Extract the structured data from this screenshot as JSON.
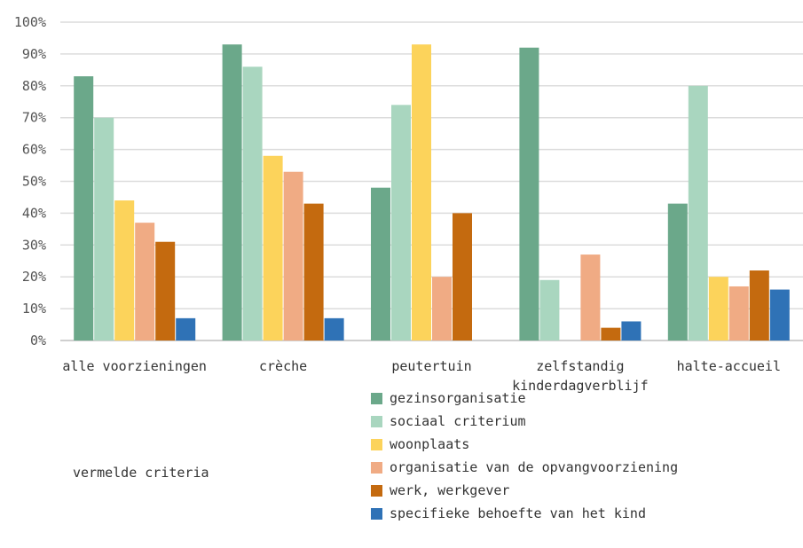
{
  "chart_data": {
    "type": "bar",
    "categories": [
      "alle voorzieningen",
      "crèche",
      "peutertuin",
      "zelfstandig kinderdagverblijf",
      "halte-accueil"
    ],
    "category_lines": [
      [
        "alle voorzieningen"
      ],
      [
        "crèche"
      ],
      [
        "peutertuin"
      ],
      [
        "zelfstandig",
        "kinderdagverblijf"
      ],
      [
        "halte-accueil"
      ]
    ],
    "y_ticks": [
      "0%",
      "10%",
      "20%",
      "30%",
      "40%",
      "50%",
      "60%",
      "70%",
      "80%",
      "90%",
      "100%"
    ],
    "ylim": [
      0,
      100
    ],
    "grid": true,
    "legend_position": "bottom",
    "series": [
      {
        "name": "gezinsorganisatie",
        "color": "#6ba88a",
        "values": [
          83,
          93,
          48,
          92,
          43
        ]
      },
      {
        "name": "sociaal criterium",
        "color": "#a9d6bf",
        "values": [
          70,
          86,
          74,
          19,
          80
        ]
      },
      {
        "name": "woonplaats",
        "color": "#fcd35b",
        "values": [
          44,
          58,
          93,
          0,
          20
        ]
      },
      {
        "name": "organisatie van de opvangvoorziening",
        "color": "#f0ab84",
        "values": [
          37,
          53,
          20,
          27,
          17
        ]
      },
      {
        "name": "werk, werkgever",
        "color": "#c46a0f",
        "values": [
          31,
          43,
          40,
          4,
          22
        ]
      },
      {
        "name": "specifieke behoefte van het kind",
        "color": "#2f72b6",
        "values": [
          7,
          7,
          0,
          6,
          16
        ]
      }
    ],
    "annotation": "vermelde criteria"
  }
}
